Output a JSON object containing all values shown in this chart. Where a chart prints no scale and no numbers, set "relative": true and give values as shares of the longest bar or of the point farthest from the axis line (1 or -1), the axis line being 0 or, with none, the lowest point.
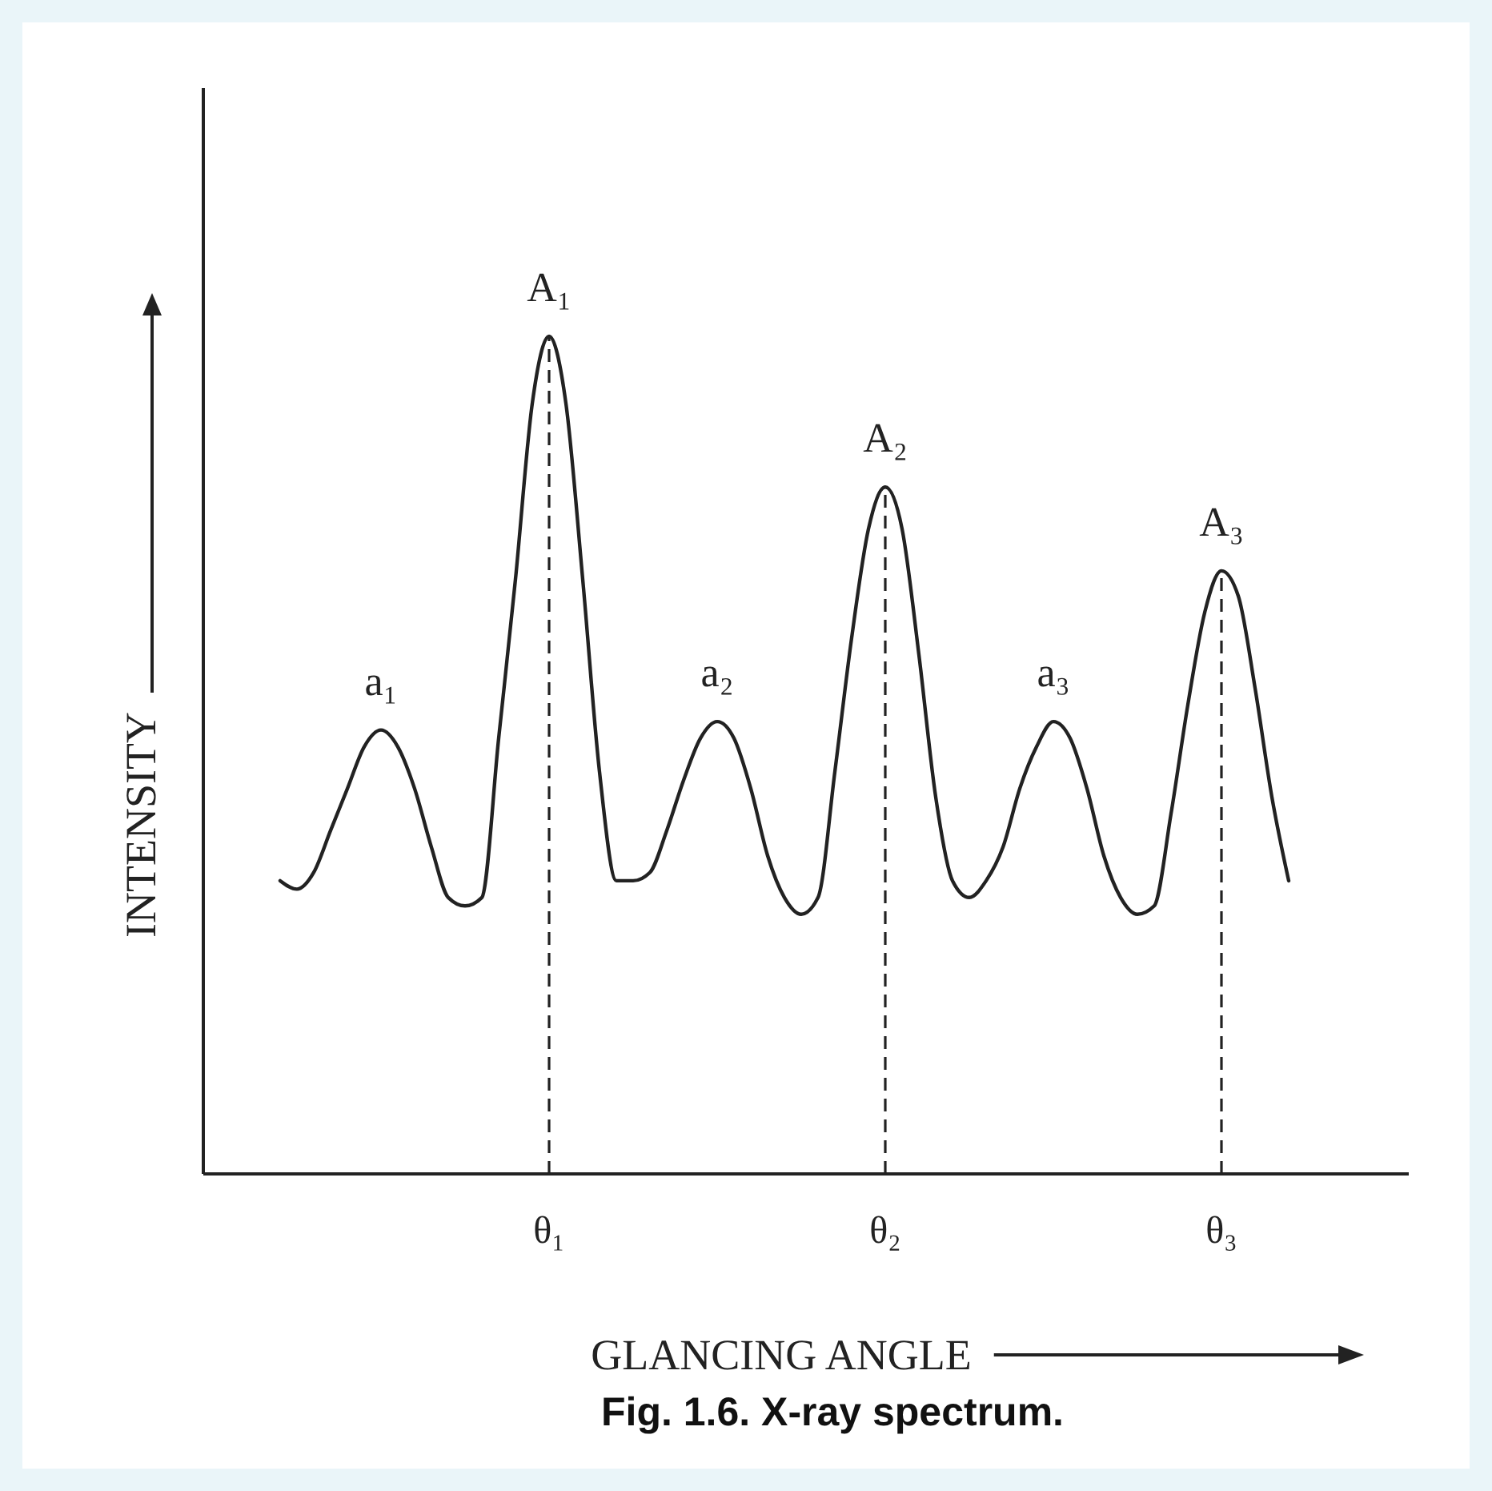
{
  "chart_data": {
    "type": "line",
    "title": "Fig. 1.6. X-ray spectrum.",
    "xlabel": "GLANCING ANGLE",
    "ylabel": "INTENSITY",
    "relative": true,
    "color": "#222222",
    "categories": [
      null,
      null,
      null,
      null,
      null,
      null,
      null,
      null,
      null,
      null,
      null,
      null,
      null,
      null,
      null,
      null,
      "θ₁",
      null,
      null,
      null,
      null,
      null,
      null,
      null,
      null,
      null,
      null,
      null,
      null,
      null,
      null,
      null,
      null,
      null,
      null,
      null,
      "θ₂",
      null,
      null,
      null,
      null,
      null,
      null,
      null,
      null,
      null,
      null,
      null,
      null,
      null,
      null,
      null,
      null,
      null,
      null,
      null,
      "θ₃",
      null,
      null,
      null,
      null
    ],
    "values": [
      0.35,
      0.34,
      0.36,
      0.41,
      0.46,
      0.51,
      0.53,
      0.51,
      0.46,
      0.39,
      0.33,
      0.32,
      0.33,
      0.52,
      0.71,
      0.92,
      1.0,
      0.92,
      0.71,
      0.48,
      0.35,
      0.35,
      0.36,
      0.41,
      0.47,
      0.52,
      0.54,
      0.52,
      0.46,
      0.38,
      0.33,
      0.31,
      0.33,
      0.48,
      0.64,
      0.77,
      0.82,
      0.77,
      0.62,
      0.45,
      0.35,
      0.33,
      0.35,
      0.39,
      0.46,
      0.51,
      0.54,
      0.52,
      0.46,
      0.38,
      0.33,
      0.31,
      0.32,
      0.43,
      0.56,
      0.67,
      0.72,
      0.69,
      0.58,
      0.45,
      0.35
    ],
    "ref_lines": [
      {
        "axis": "x",
        "value": "θ₁",
        "line_style": "dashed"
      },
      {
        "axis": "x",
        "value": "θ₂",
        "line_style": "dashed"
      },
      {
        "axis": "x",
        "value": "θ₃",
        "line_style": "dashed"
      }
    ],
    "annotations": [
      "a₁",
      "A₁",
      "a₂",
      "A₂",
      "a₃",
      "A₃"
    ]
  }
}
